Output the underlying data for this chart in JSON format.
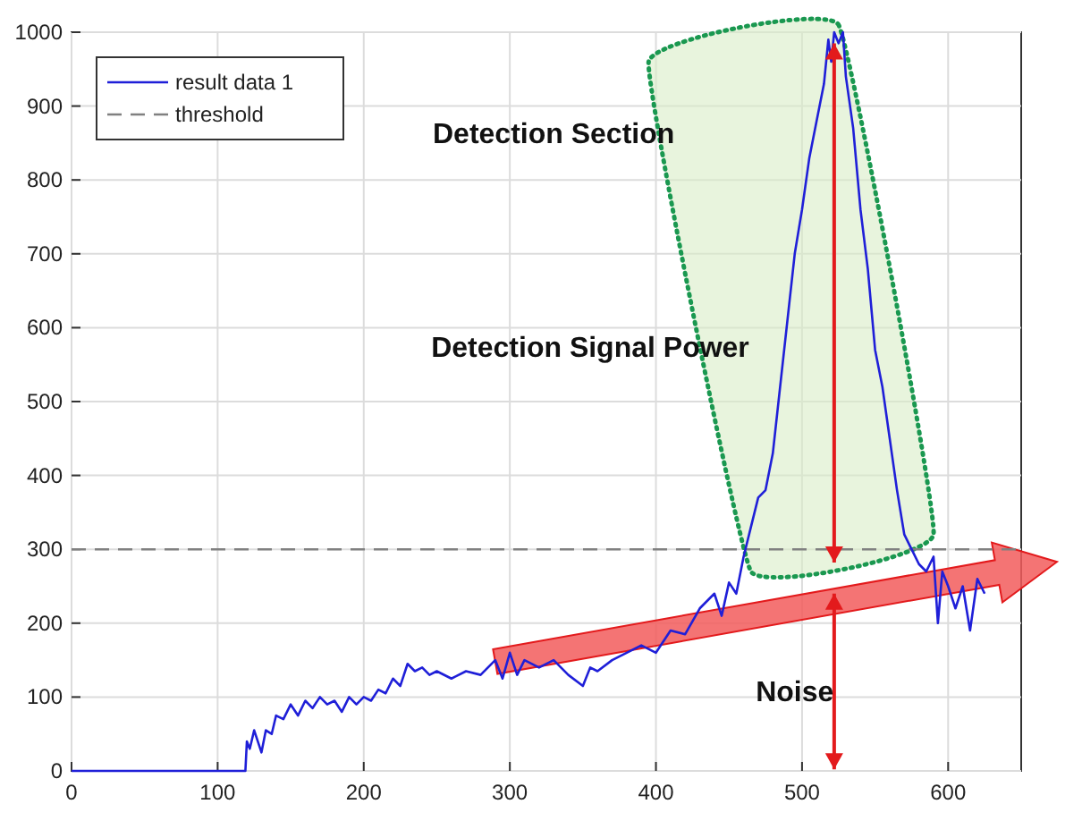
{
  "chart_data": {
    "type": "line",
    "xlim": [
      0,
      650
    ],
    "ylim": [
      0,
      1000
    ],
    "xticks": [
      0,
      100,
      200,
      300,
      400,
      500,
      600
    ],
    "yticks": [
      0,
      100,
      200,
      300,
      400,
      500,
      600,
      700,
      800,
      900,
      1000
    ],
    "grid": true,
    "legend": "top left",
    "line_style": "solid",
    "series": [
      {
        "name": "result data 1",
        "color": "#1f1fd8",
        "x": [
          0,
          60,
          119,
          120,
          122,
          125,
          130,
          133,
          137,
          140,
          145,
          150,
          155,
          160,
          165,
          170,
          175,
          180,
          185,
          190,
          195,
          200,
          205,
          210,
          215,
          220,
          225,
          230,
          235,
          240,
          245,
          250,
          260,
          270,
          280,
          290,
          295,
          300,
          305,
          310,
          320,
          330,
          340,
          350,
          355,
          360,
          370,
          380,
          390,
          400,
          410,
          420,
          430,
          440,
          445,
          450,
          455,
          460,
          465,
          470,
          475,
          480,
          485,
          490,
          495,
          500,
          505,
          510,
          515,
          518,
          520,
          522,
          525,
          528,
          530,
          535,
          540,
          545,
          550,
          555,
          560,
          565,
          570,
          575,
          580,
          585,
          590,
          593,
          596,
          600,
          605,
          610,
          615,
          620,
          625
        ],
        "values": [
          0,
          0,
          0,
          40,
          30,
          55,
          25,
          55,
          50,
          75,
          70,
          90,
          75,
          95,
          85,
          100,
          90,
          95,
          80,
          100,
          90,
          100,
          95,
          110,
          105,
          125,
          115,
          145,
          135,
          140,
          130,
          135,
          125,
          135,
          130,
          150,
          125,
          160,
          130,
          150,
          140,
          150,
          130,
          115,
          140,
          135,
          150,
          160,
          170,
          160,
          190,
          185,
          220,
          240,
          210,
          255,
          240,
          290,
          330,
          370,
          380,
          430,
          520,
          610,
          700,
          760,
          830,
          880,
          930,
          990,
          960,
          1000,
          985,
          1000,
          940,
          870,
          760,
          680,
          570,
          520,
          450,
          380,
          320,
          300,
          280,
          270,
          290,
          200,
          270,
          250,
          220,
          250,
          190,
          260,
          240
        ]
      }
    ],
    "ref_lines": [
      {
        "axis": "y",
        "value": 300,
        "label": "threshold",
        "color": "#808080",
        "line_style": "dashed"
      }
    ],
    "annotations": [
      "Detection Section",
      "Detection Signal Power",
      "Noise"
    ]
  }
}
